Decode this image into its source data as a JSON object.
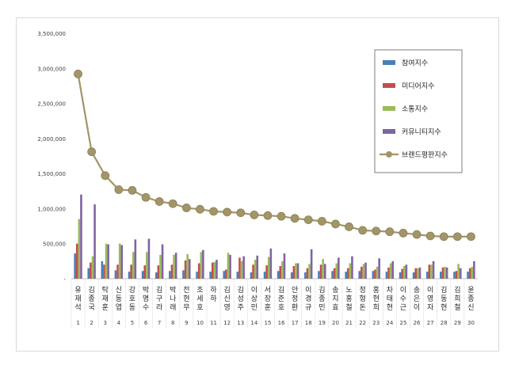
{
  "chart_data": {
    "type": "bar",
    "ylim": [
      0,
      3500000
    ],
    "yticks": [
      "3,500,000",
      "3,000,000",
      "2,500,000",
      "2,000,000",
      "1,500,000",
      "1,000,000",
      "500,000",
      "-"
    ],
    "ytick_values": [
      3500000,
      3000000,
      2500000,
      2000000,
      1500000,
      1000000,
      500000,
      0
    ],
    "grid": false,
    "legend_position": "top-right",
    "categories": [
      "유재석",
      "김종국",
      "탁재훈",
      "신동엽",
      "강호동",
      "박명수",
      "김구라",
      "박나래",
      "전현무",
      "조세호",
      "하하",
      "김신영",
      "김성주",
      "이상민",
      "서장훈",
      "김준호",
      "안정환",
      "이경규",
      "김종민",
      "송지효",
      "노홍철",
      "정형돈",
      "홍현희",
      "차태현",
      "이수근",
      "송은이",
      "이영자",
      "김동현",
      "김희철",
      "윤종신"
    ],
    "ranks": [
      "1",
      "2",
      "3",
      "4",
      "5",
      "6",
      "7",
      "8",
      "9",
      "10",
      "11",
      "12",
      "13",
      "14",
      "15",
      "16",
      "17",
      "18",
      "19",
      "20",
      "21",
      "22",
      "23",
      "24",
      "25",
      "26",
      "27",
      "28",
      "29",
      "30"
    ],
    "series": [
      {
        "name": "참여지수",
        "color": "#4a7ebb",
        "kind": "bar",
        "values": [
          360000,
          150000,
          250000,
          120000,
          100000,
          110000,
          90000,
          110000,
          120000,
          100000,
          100000,
          110000,
          100000,
          90000,
          100000,
          110000,
          90000,
          90000,
          110000,
          110000,
          100000,
          110000,
          110000,
          100000,
          90000,
          90000,
          100000,
          100000,
          100000,
          100000
        ]
      },
      {
        "name": "미디어지수",
        "color": "#c0504d",
        "kind": "bar",
        "values": [
          500000,
          230000,
          200000,
          200000,
          200000,
          190000,
          190000,
          200000,
          260000,
          220000,
          230000,
          130000,
          300000,
          200000,
          190000,
          180000,
          180000,
          150000,
          200000,
          150000,
          150000,
          170000,
          130000,
          160000,
          140000,
          150000,
          200000,
          160000,
          110000,
          150000
        ]
      },
      {
        "name": "소통지수",
        "color": "#9bbb59",
        "kind": "bar",
        "values": [
          850000,
          320000,
          500000,
          500000,
          380000,
          380000,
          340000,
          340000,
          350000,
          380000,
          240000,
          370000,
          250000,
          270000,
          310000,
          250000,
          220000,
          210000,
          280000,
          220000,
          220000,
          210000,
          170000,
          220000,
          180000,
          150000,
          200000,
          170000,
          210000,
          170000
        ]
      },
      {
        "name": "커뮤니티지수",
        "color": "#8064a2",
        "kind": "bar",
        "values": [
          1200000,
          1060000,
          490000,
          480000,
          560000,
          570000,
          490000,
          370000,
          280000,
          410000,
          270000,
          340000,
          320000,
          330000,
          430000,
          360000,
          220000,
          420000,
          210000,
          300000,
          320000,
          230000,
          290000,
          250000,
          200000,
          160000,
          250000,
          160000,
          150000,
          250000
        ]
      },
      {
        "name": "브랜드평판지수",
        "color": "#a29568",
        "kind": "line",
        "values": [
          2920000,
          1810000,
          1470000,
          1270000,
          1260000,
          1160000,
          1100000,
          1070000,
          1010000,
          990000,
          960000,
          950000,
          940000,
          910000,
          900000,
          890000,
          860000,
          840000,
          820000,
          780000,
          740000,
          690000,
          680000,
          670000,
          650000,
          630000,
          610000,
          600000,
          600000,
          600000
        ]
      }
    ]
  }
}
